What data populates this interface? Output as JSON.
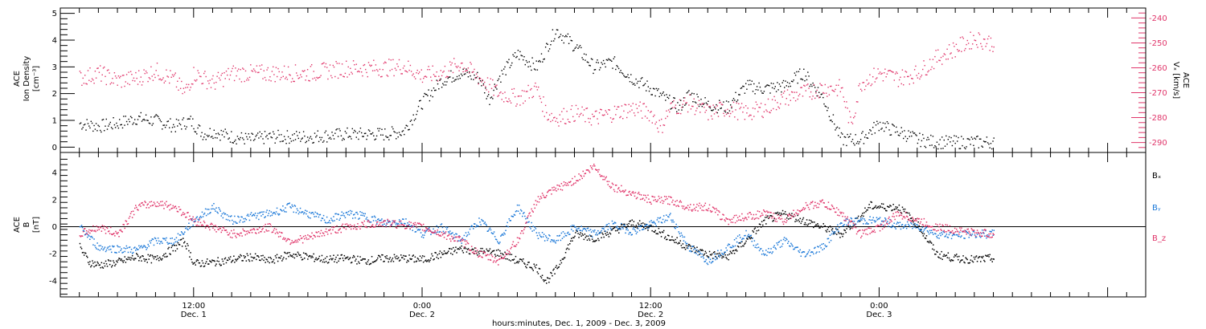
{
  "chart_data": [
    {
      "type": "scatter",
      "panel": "top",
      "ylabel_left": [
        "ACE",
        "Ion Density",
        "[cm⁻³]"
      ],
      "ylabel_right": [
        "ACE",
        "Vₓ [km/s]"
      ],
      "ylim_left": [
        -0.2,
        5.2
      ],
      "ylim_right": [
        -294,
        -236
      ],
      "yticks_left": [
        "0",
        "1",
        "2",
        "3",
        "4",
        "5"
      ],
      "yticks_right": [
        "-240",
        "-250",
        "-260",
        "-270",
        "-280",
        "-290"
      ],
      "right_axis_color": "#e0356a",
      "series": [
        {
          "color": "#000000",
          "axis": "left",
          "x": [
            6,
            7,
            8,
            9,
            10,
            11,
            11.8,
            12.5,
            13,
            14,
            15,
            16,
            18,
            20,
            22,
            23,
            24,
            25,
            26,
            27,
            27.5,
            28,
            29,
            30,
            31,
            31.5,
            32,
            33,
            34,
            35,
            36,
            37,
            37.5,
            38,
            39,
            40,
            41,
            42,
            43,
            44,
            45,
            46,
            47,
            48,
            48.5,
            49,
            50,
            51,
            52,
            53,
            54
          ],
          "y": [
            0.9,
            0.8,
            0.9,
            1.1,
            1.0,
            0.8,
            1.0,
            0.5,
            0.6,
            0.4,
            0.3,
            0.4,
            0.4,
            0.5,
            0.5,
            0.6,
            1.7,
            2.5,
            2.8,
            2.6,
            1.8,
            2.6,
            3.5,
            3.0,
            4.4,
            4.1,
            3.8,
            3.0,
            3.2,
            2.6,
            2.2,
            1.7,
            1.5,
            2.0,
            1.6,
            1.5,
            2.3,
            2.2,
            2.3,
            2.8,
            1.9,
            0.3,
            0.3,
            0.9,
            0.7,
            0.6,
            0.3,
            0.2,
            0.2,
            0.2,
            0.2
          ]
        },
        {
          "color": "#e0356a",
          "axis": "right",
          "x": [
            6,
            7,
            8,
            9,
            10,
            11,
            11.5,
            12,
            13,
            14,
            16,
            18,
            20,
            22,
            23,
            24,
            25,
            26,
            27,
            28,
            29,
            30,
            30.5,
            31,
            32,
            33,
            34,
            35,
            36,
            36.5,
            37,
            38,
            39,
            40,
            41,
            42,
            43,
            44,
            45,
            46,
            46.5,
            47,
            48,
            49,
            50,
            51,
            52,
            53,
            54
          ],
          "y": [
            -264,
            -262,
            -265,
            -264,
            -261,
            -265,
            -270,
            -262,
            -266,
            -262,
            -262,
            -262,
            -260,
            -260,
            -259,
            -263,
            -262,
            -258,
            -264,
            -270,
            -272,
            -268,
            -278,
            -280,
            -278,
            -280,
            -278,
            -276,
            -278,
            -284,
            -276,
            -274,
            -278,
            -276,
            -278,
            -276,
            -272,
            -270,
            -268,
            -268,
            -283,
            -266,
            -262,
            -264,
            -262,
            -256,
            -252,
            -248,
            -250
          ]
        }
      ]
    },
    {
      "type": "line",
      "panel": "bottom",
      "ylabel": [
        "ACE",
        "B",
        "[nT]"
      ],
      "ylim": [
        -5.2,
        5.5
      ],
      "yticks": [
        "-4",
        "-2",
        "0",
        "2",
        "4"
      ],
      "zero_line": true,
      "legend": [
        "Bₓ",
        "Bᵧ",
        "B_z"
      ],
      "legend_placement": "right",
      "series": [
        {
          "name": "Bₓ",
          "color": "#000000",
          "x": [
            6,
            6.5,
            7,
            8,
            9,
            10,
            11,
            11.5,
            12,
            13,
            14,
            15,
            16,
            17,
            18,
            19,
            20,
            21,
            22,
            23,
            24,
            25,
            26,
            27,
            28,
            29,
            30,
            30.5,
            31,
            32,
            33,
            34,
            35,
            36,
            37,
            38,
            39,
            40,
            41,
            42,
            43,
            44,
            45,
            46,
            47,
            47.5,
            48,
            49,
            50,
            51,
            52,
            53,
            54
          ],
          "y": [
            -1.5,
            -2.6,
            -2.8,
            -2.6,
            -2.2,
            -2.4,
            -1.5,
            -1.0,
            -2.7,
            -2.6,
            -2.4,
            -2.2,
            -2.5,
            -2.0,
            -2.2,
            -2.4,
            -2.3,
            -2.5,
            -2.3,
            -2.3,
            -2.4,
            -2.0,
            -1.6,
            -1.8,
            -1.9,
            -2.5,
            -3.0,
            -4.0,
            -3.2,
            -0.5,
            -0.8,
            -0.3,
            0.3,
            0.0,
            -0.8,
            -1.5,
            -2.0,
            -2.2,
            -1.0,
            0.5,
            1.0,
            0.5,
            0.0,
            -0.5,
            0.8,
            1.6,
            1.5,
            1.5,
            0.2,
            -2.0,
            -2.3,
            -2.4,
            -2.3
          ]
        },
        {
          "name": "Bᵧ",
          "color": "#1b78d8",
          "x": [
            6,
            7,
            8,
            9,
            10,
            11,
            12,
            13,
            14,
            15,
            16,
            17,
            18,
            19,
            20,
            21,
            22,
            23,
            24,
            25,
            26,
            27,
            28,
            29,
            30,
            31,
            32,
            33,
            34,
            35,
            36,
            37,
            38,
            39,
            40,
            41,
            42,
            43,
            44,
            45,
            46,
            47,
            48,
            49,
            50,
            51,
            52,
            53,
            54
          ],
          "y": [
            0.0,
            -1.5,
            -1.6,
            -1.7,
            -1.0,
            -1.0,
            0.5,
            1.5,
            0.5,
            0.8,
            1.0,
            1.5,
            1.0,
            0.5,
            1.0,
            0.8,
            0.3,
            0.5,
            -0.5,
            0.0,
            -1.0,
            0.5,
            -1.0,
            1.5,
            -0.5,
            -1.0,
            0.0,
            -0.5,
            0.2,
            -0.3,
            0.2,
            0.8,
            -1.5,
            -2.5,
            -1.5,
            -0.5,
            -2.0,
            -1.0,
            -2.0,
            -1.5,
            0.3,
            0.5,
            0.5,
            0.1,
            0.1,
            -0.5,
            -0.6,
            -0.5,
            -0.5
          ]
        },
        {
          "name": "B_z",
          "color": "#e0356a",
          "x": [
            6,
            7,
            8,
            9,
            10,
            11,
            12,
            13,
            14,
            15,
            16,
            17,
            18,
            19,
            20,
            21,
            22,
            23,
            24,
            25,
            26,
            27,
            28,
            29,
            30,
            31,
            32,
            33,
            34,
            35,
            36,
            37,
            38,
            39,
            40,
            41,
            42,
            43,
            44,
            45,
            46,
            47,
            48,
            49,
            50,
            51,
            52,
            53,
            54
          ],
          "y": [
            -0.5,
            0.0,
            -0.5,
            1.5,
            1.8,
            1.5,
            0.5,
            0.0,
            -0.5,
            -0.3,
            0.0,
            -1.0,
            -0.8,
            -0.3,
            0.0,
            0.2,
            0.3,
            0.2,
            0.0,
            -0.5,
            -1.0,
            -2.0,
            -2.5,
            -1.0,
            2.0,
            2.8,
            3.5,
            4.5,
            3.0,
            2.5,
            2.0,
            2.0,
            1.5,
            1.5,
            0.5,
            0.8,
            1.0,
            0.5,
            1.5,
            1.8,
            1.0,
            -0.5,
            0.0,
            1.0,
            0.5,
            0.0,
            -0.2,
            -0.4,
            -0.5
          ]
        }
      ]
    }
  ],
  "x_axis": {
    "xlim": [
      5,
      62
    ],
    "major_ticks": [
      {
        "x": 12,
        "label": "12:00",
        "sublabel": "Dec. 1"
      },
      {
        "x": 24,
        "label": "0:00",
        "sublabel": "Dec. 2"
      },
      {
        "x": 36,
        "label": "12:00",
        "sublabel": "Dec. 2"
      },
      {
        "x": 48,
        "label": "0:00",
        "sublabel": "Dec. 3"
      }
    ],
    "title": "hours:minutes, Dec.  1, 2009 - Dec.  3, 2009"
  }
}
